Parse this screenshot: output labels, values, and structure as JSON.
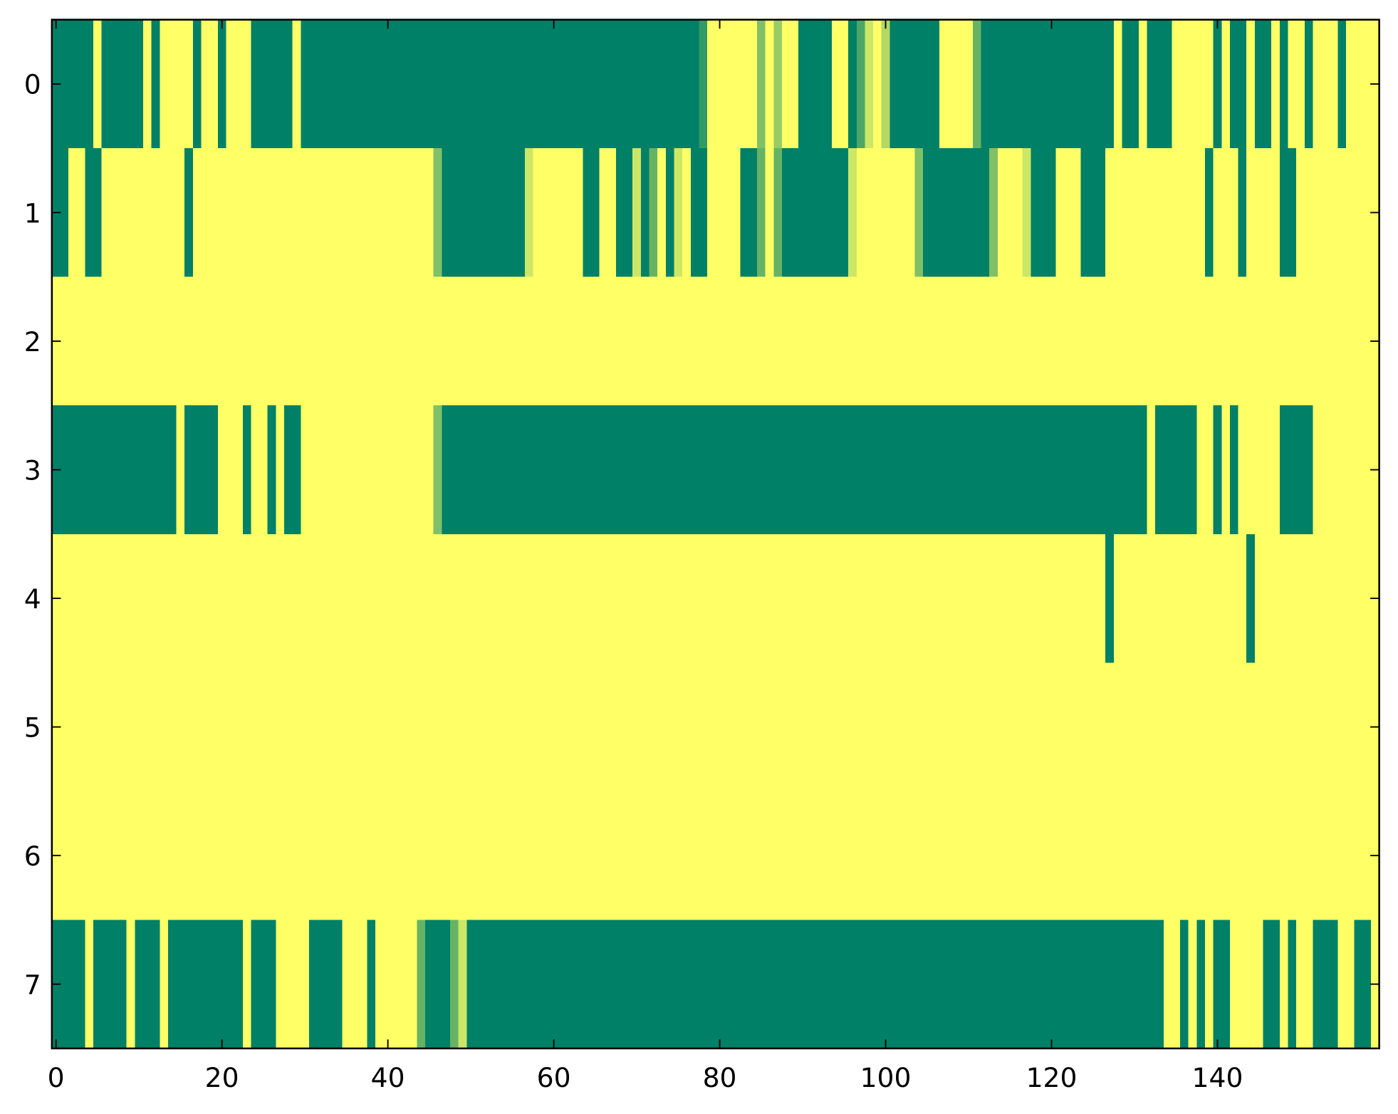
{
  "chart_data": {
    "type": "heatmap",
    "colors": [
      "#008066",
      "#ffff66"
    ],
    "vlim": [
      0,
      1
    ],
    "xlim": [
      -0.5,
      159.5
    ],
    "ylim": [
      7.5,
      -0.5
    ],
    "xticks": [
      0,
      20,
      40,
      60,
      80,
      100,
      120,
      140
    ],
    "yticks": [
      0,
      1,
      2,
      3,
      4,
      5,
      6,
      7
    ],
    "values": [
      [
        0,
        0,
        0,
        0,
        0,
        1,
        0,
        0,
        0,
        0,
        0,
        1,
        0,
        1,
        1,
        1,
        1,
        0,
        1,
        1,
        0,
        1,
        1,
        1,
        0,
        0,
        0,
        0,
        0,
        1,
        0,
        0,
        0,
        0,
        0,
        0,
        0,
        0,
        0,
        0,
        0,
        0,
        0,
        0,
        0,
        0,
        0,
        0,
        0,
        0,
        0,
        0,
        0,
        0,
        0,
        0,
        0,
        0,
        0,
        0,
        0,
        0,
        0,
        0,
        0,
        0,
        0,
        0,
        0,
        0,
        0,
        0,
        0,
        0,
        0,
        0,
        0,
        0,
        0.2,
        1,
        1,
        1,
        1,
        1,
        1,
        0.5,
        1,
        0.6,
        1,
        1,
        0,
        0,
        0,
        0,
        1,
        1,
        0,
        0.3,
        0.8,
        1,
        0.7,
        0,
        0,
        0,
        0,
        0,
        0,
        1,
        1,
        1,
        1,
        0.4,
        0,
        0,
        0,
        0,
        0,
        0,
        0,
        0,
        0,
        0,
        0,
        0,
        0,
        0,
        0,
        0,
        1,
        0,
        0,
        1,
        0,
        0,
        0,
        1,
        1,
        1,
        1,
        1,
        0,
        1,
        0,
        0,
        1,
        0,
        0,
        1,
        0,
        1,
        1,
        0,
        1,
        1,
        1,
        0,
        1,
        1,
        1,
        1
      ],
      [
        0,
        0,
        1,
        1,
        0,
        0,
        1,
        1,
        1,
        1,
        1,
        1,
        1,
        1,
        1,
        1,
        0,
        1,
        1,
        1,
        1,
        1,
        1,
        1,
        1,
        1,
        1,
        1,
        1,
        1,
        1,
        1,
        1,
        1,
        1,
        1,
        1,
        1,
        1,
        1,
        1,
        1,
        1,
        1,
        1,
        1,
        0.5,
        0,
        0,
        0,
        0,
        0,
        0,
        0,
        0,
        0,
        0,
        0.8,
        1,
        1,
        1,
        1,
        1,
        1,
        0,
        0,
        1,
        1,
        0,
        0,
        0.8,
        0,
        0.4,
        1,
        0,
        0.8,
        1,
        0,
        0,
        1,
        1,
        1,
        1,
        0,
        0,
        0.4,
        1,
        0.4,
        0,
        0,
        0,
        0,
        0,
        0,
        0,
        0,
        0.8,
        1,
        1,
        1,
        1,
        1,
        1,
        1,
        0.5,
        0,
        0,
        0,
        0,
        0,
        0,
        0,
        0,
        0.5,
        1,
        1,
        1,
        0.8,
        0,
        0,
        0,
        1,
        1,
        1,
        0,
        0,
        0,
        1,
        1,
        1,
        1,
        1,
        1,
        1,
        1,
        1,
        1,
        1,
        1,
        0,
        1,
        1,
        1,
        0,
        1,
        1,
        1,
        1,
        0,
        0,
        1,
        1,
        1,
        1,
        1,
        1,
        1,
        1,
        1,
        1
      ],
      [
        1,
        1,
        1,
        1,
        1,
        1,
        1,
        1,
        1,
        1,
        1,
        1,
        1,
        1,
        1,
        1,
        1,
        1,
        1,
        1,
        1,
        1,
        1,
        1,
        1,
        1,
        1,
        1,
        1,
        1,
        1,
        1,
        1,
        1,
        1,
        1,
        1,
        1,
        1,
        1,
        1,
        1,
        1,
        1,
        1,
        1,
        1,
        1,
        1,
        1,
        1,
        1,
        1,
        1,
        1,
        1,
        1,
        1,
        1,
        1,
        1,
        1,
        1,
        1,
        1,
        1,
        1,
        1,
        1,
        1,
        1,
        1,
        1,
        1,
        1,
        1,
        1,
        1,
        1,
        1,
        1,
        1,
        1,
        1,
        1,
        1,
        1,
        1,
        1,
        1,
        1,
        1,
        1,
        1,
        1,
        1,
        1,
        1,
        1,
        1,
        1,
        1,
        1,
        1,
        1,
        1,
        1,
        1,
        1,
        1,
        1,
        1,
        1,
        1,
        1,
        1,
        1,
        1,
        1,
        1,
        1,
        1,
        1,
        1,
        1,
        1,
        1,
        1,
        1,
        1,
        1,
        1,
        1,
        1,
        1,
        1,
        1,
        1,
        1,
        1,
        1,
        1,
        1,
        1,
        1,
        1,
        1,
        1,
        1,
        1,
        1,
        1,
        1,
        1,
        1,
        1,
        1,
        1,
        1,
        1
      ],
      [
        0,
        0,
        0,
        0,
        0,
        0,
        0,
        0,
        0,
        0,
        0,
        0,
        0,
        0,
        0,
        1,
        0,
        0,
        0,
        0,
        1,
        1,
        1,
        0,
        1,
        1,
        0,
        1,
        0,
        0,
        1,
        1,
        1,
        1,
        1,
        1,
        1,
        1,
        1,
        1,
        1,
        1,
        1,
        1,
        1,
        1,
        0.5,
        0,
        0,
        0,
        0,
        0,
        0,
        0,
        0,
        0,
        0,
        0,
        0,
        0,
        0,
        0,
        0,
        0,
        0,
        0,
        0,
        0,
        0,
        0,
        0,
        0,
        0,
        0,
        0,
        0,
        0,
        0,
        0,
        0,
        0,
        0,
        0,
        0,
        0,
        0,
        0,
        0,
        0,
        0,
        0,
        0,
        0,
        0,
        0,
        0,
        0,
        0,
        0,
        0,
        0,
        0,
        0,
        0,
        0,
        0,
        0,
        0,
        0,
        0,
        0,
        0,
        0,
        0,
        0,
        0,
        0,
        0,
        0,
        0,
        0,
        0,
        0,
        0,
        0,
        0,
        0,
        0,
        0,
        0,
        0,
        0,
        1,
        0,
        0,
        0,
        0,
        0,
        1,
        1,
        0,
        1,
        0,
        1,
        1,
        1,
        1,
        1,
        0,
        0,
        0,
        0,
        1,
        1,
        1,
        1,
        1,
        1,
        1,
        1
      ],
      [
        1,
        1,
        1,
        1,
        1,
        1,
        1,
        1,
        1,
        1,
        1,
        1,
        1,
        1,
        1,
        1,
        1,
        1,
        1,
        1,
        1,
        1,
        1,
        1,
        1,
        1,
        1,
        1,
        1,
        1,
        1,
        1,
        1,
        1,
        1,
        1,
        1,
        1,
        1,
        1,
        1,
        1,
        1,
        1,
        1,
        1,
        1,
        1,
        1,
        1,
        1,
        1,
        1,
        1,
        1,
        1,
        1,
        1,
        1,
        1,
        1,
        1,
        1,
        1,
        1,
        1,
        1,
        1,
        1,
        1,
        1,
        1,
        1,
        1,
        1,
        1,
        1,
        1,
        1,
        1,
        1,
        1,
        1,
        1,
        1,
        1,
        1,
        1,
        1,
        1,
        1,
        1,
        1,
        1,
        1,
        1,
        1,
        1,
        1,
        1,
        1,
        1,
        1,
        1,
        1,
        1,
        1,
        1,
        1,
        1,
        1,
        1,
        1,
        1,
        1,
        1,
        1,
        1,
        1,
        1,
        1,
        1,
        1,
        1,
        1,
        1,
        1,
        0,
        1,
        1,
        1,
        1,
        1,
        1,
        1,
        1,
        1,
        1,
        1,
        1,
        1,
        1,
        1,
        1,
        0,
        1,
        1,
        1,
        1,
        1,
        1,
        1,
        1,
        1,
        1,
        1,
        1,
        1,
        1,
        1
      ],
      [
        1,
        1,
        1,
        1,
        1,
        1,
        1,
        1,
        1,
        1,
        1,
        1,
        1,
        1,
        1,
        1,
        1,
        1,
        1,
        1,
        1,
        1,
        1,
        1,
        1,
        1,
        1,
        1,
        1,
        1,
        1,
        1,
        1,
        1,
        1,
        1,
        1,
        1,
        1,
        1,
        1,
        1,
        1,
        1,
        1,
        1,
        1,
        1,
        1,
        1,
        1,
        1,
        1,
        1,
        1,
        1,
        1,
        1,
        1,
        1,
        1,
        1,
        1,
        1,
        1,
        1,
        1,
        1,
        1,
        1,
        1,
        1,
        1,
        1,
        1,
        1,
        1,
        1,
        1,
        1,
        1,
        1,
        1,
        1,
        1,
        1,
        1,
        1,
        1,
        1,
        1,
        1,
        1,
        1,
        1,
        1,
        1,
        1,
        1,
        1,
        1,
        1,
        1,
        1,
        1,
        1,
        1,
        1,
        1,
        1,
        1,
        1,
        1,
        1,
        1,
        1,
        1,
        1,
        1,
        1,
        1,
        1,
        1,
        1,
        1,
        1,
        1,
        1,
        1,
        1,
        1,
        1,
        1,
        1,
        1,
        1,
        1,
        1,
        1,
        1,
        1,
        1,
        1,
        1,
        1,
        1,
        1,
        1,
        1,
        1,
        1,
        1,
        1,
        1,
        1,
        1,
        1,
        1,
        1,
        1
      ],
      [
        1,
        1,
        1,
        1,
        1,
        1,
        1,
        1,
        1,
        1,
        1,
        1,
        1,
        1,
        1,
        1,
        1,
        1,
        1,
        1,
        1,
        1,
        1,
        1,
        1,
        1,
        1,
        1,
        1,
        1,
        1,
        1,
        1,
        1,
        1,
        1,
        1,
        1,
        1,
        1,
        1,
        1,
        1,
        1,
        1,
        1,
        1,
        1,
        1,
        1,
        1,
        1,
        1,
        1,
        1,
        1,
        1,
        1,
        1,
        1,
        1,
        1,
        1,
        1,
        1,
        1,
        1,
        1,
        1,
        1,
        1,
        1,
        1,
        1,
        1,
        1,
        1,
        1,
        1,
        1,
        1,
        1,
        1,
        1,
        1,
        1,
        1,
        1,
        1,
        1,
        1,
        1,
        1,
        1,
        1,
        1,
        1,
        1,
        1,
        1,
        1,
        1,
        1,
        1,
        1,
        1,
        1,
        1,
        1,
        1,
        1,
        1,
        1,
        1,
        1,
        1,
        1,
        1,
        1,
        1,
        1,
        1,
        1,
        1,
        1,
        1,
        1,
        1,
        1,
        1,
        1,
        1,
        1,
        1,
        1,
        1,
        1,
        1,
        1,
        1,
        1,
        1,
        1,
        1,
        1,
        1,
        1,
        1,
        1,
        1,
        1,
        1,
        1,
        1,
        1,
        1,
        1,
        1,
        1,
        1
      ],
      [
        0,
        0,
        0,
        0,
        1,
        0,
        0,
        0,
        0,
        1,
        0,
        0,
        0,
        1,
        0,
        0,
        0,
        0,
        0,
        0,
        0,
        0,
        0,
        1,
        0,
        0,
        0,
        1,
        1,
        1,
        1,
        0,
        0,
        0,
        0,
        1,
        1,
        1,
        0,
        1,
        1,
        1,
        1,
        1,
        0.4,
        0,
        0,
        0,
        0.4,
        0.8,
        0,
        0,
        0,
        0,
        0,
        0,
        0,
        0,
        0,
        0,
        0,
        0,
        0,
        0,
        0,
        0,
        0,
        0,
        0,
        0,
        0,
        0,
        0,
        0,
        0,
        0,
        0,
        0,
        0,
        0,
        0,
        0,
        0,
        0,
        0,
        0,
        0,
        0,
        0,
        0,
        0,
        0,
        0,
        0,
        0,
        0,
        0,
        0,
        0,
        0,
        0,
        0,
        0,
        0,
        0,
        0,
        0,
        0,
        0,
        0,
        0,
        0,
        0,
        0,
        0,
        0,
        0,
        0,
        0,
        0,
        0,
        0,
        0,
        0,
        0,
        0,
        0,
        0,
        0,
        0,
        0,
        0,
        0,
        0,
        1,
        1,
        0,
        1,
        0,
        1,
        0,
        0,
        1,
        1,
        1,
        1,
        0,
        0,
        1,
        0,
        1,
        1,
        0,
        0,
        0,
        1,
        1,
        0,
        0,
        1
      ]
    ]
  }
}
